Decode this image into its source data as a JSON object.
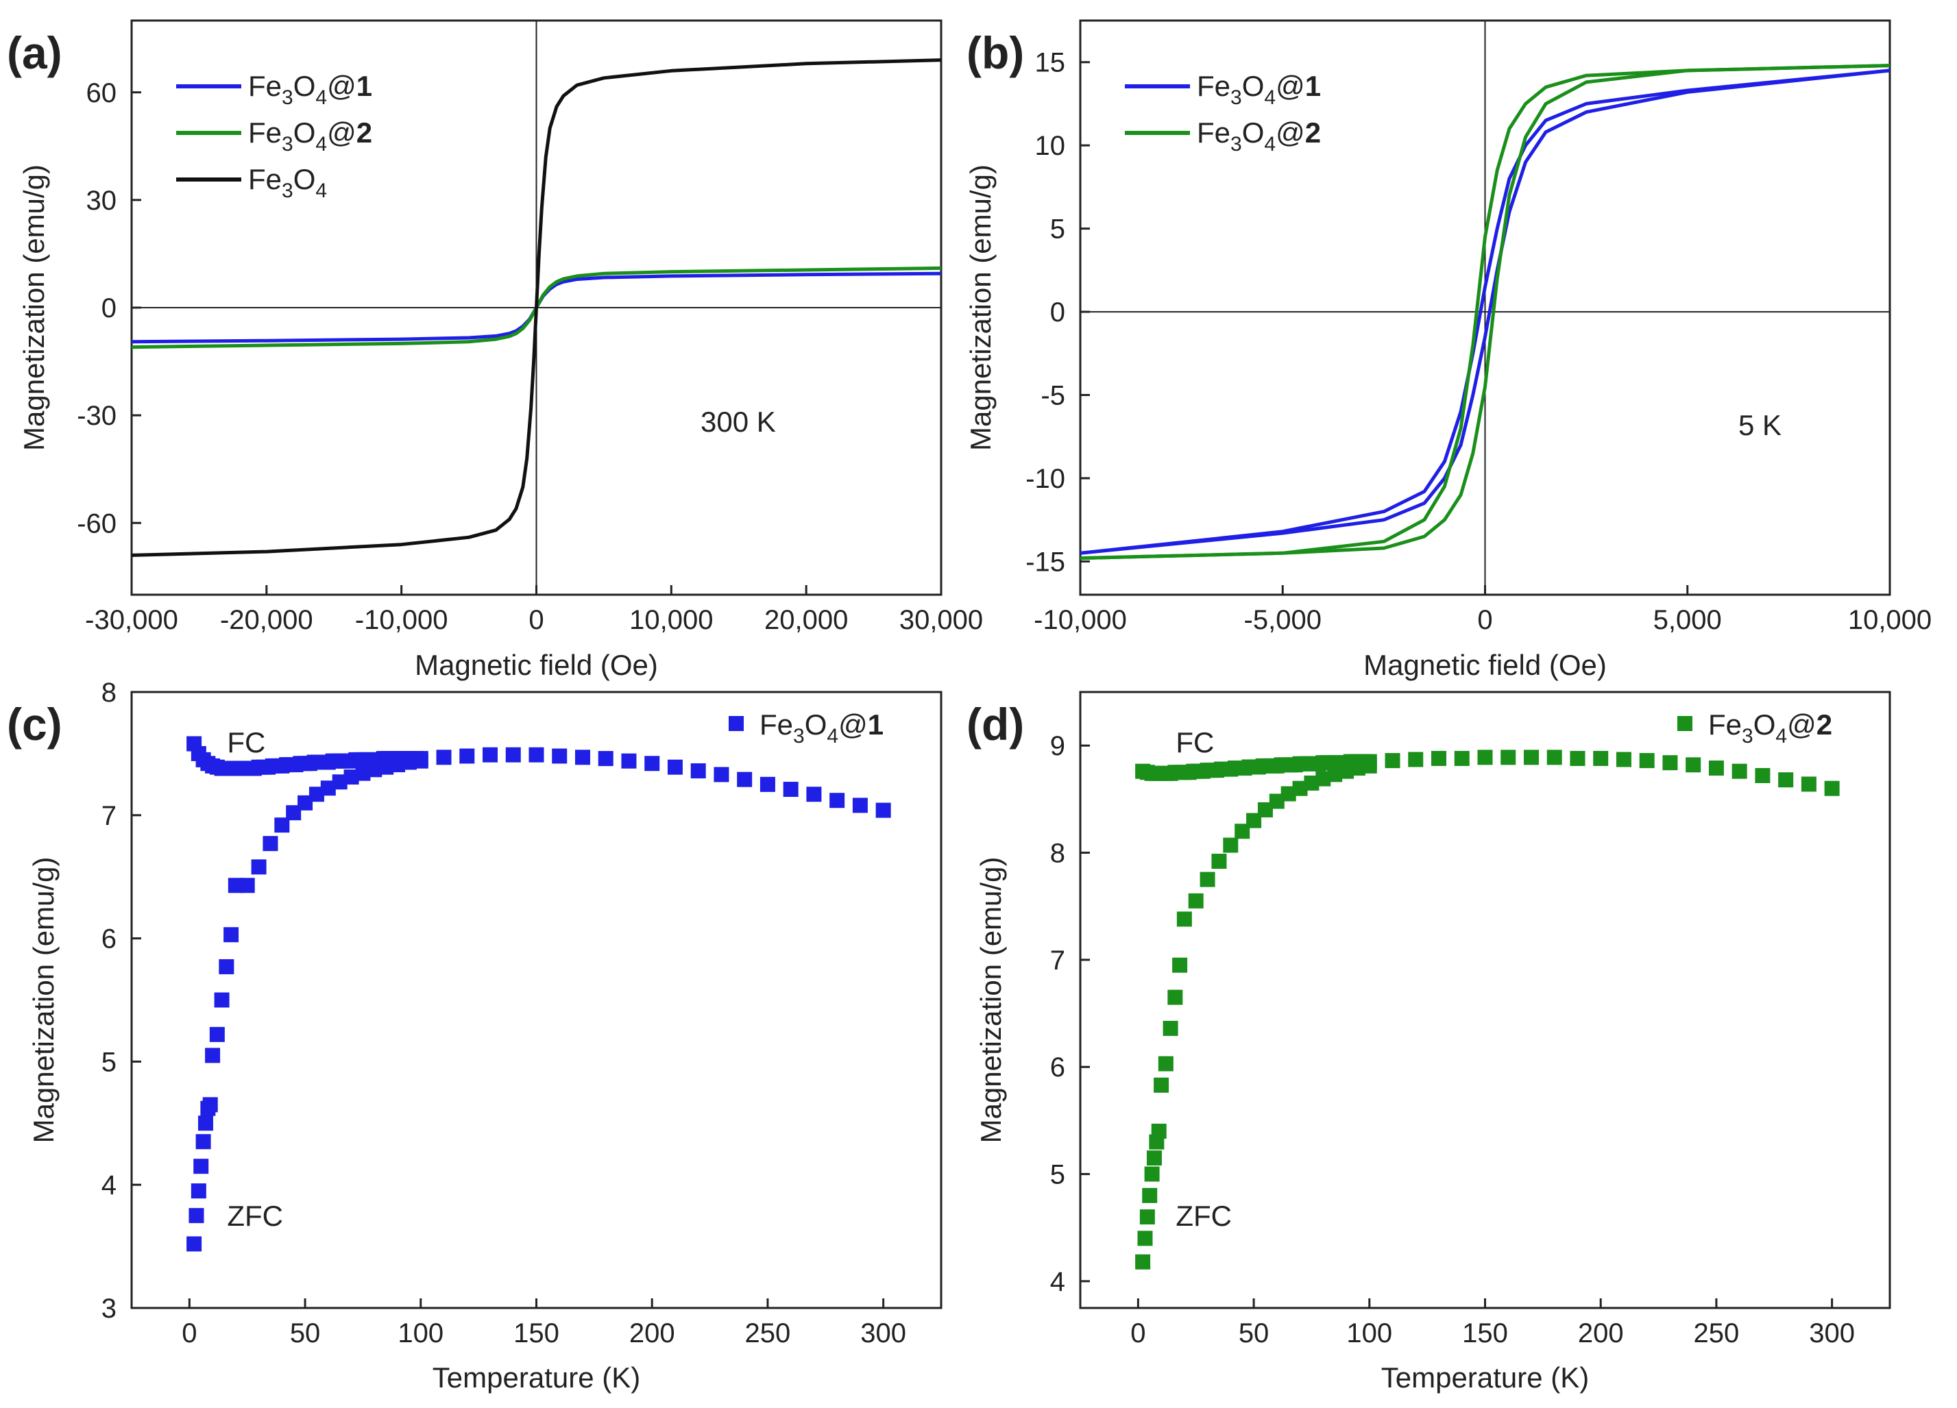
{
  "chart_data": [
    {
      "id": "a",
      "panel_label": "(a)",
      "type": "line",
      "xlabel": "Magnetic field (Oe)",
      "ylabel": "Magnetization (emu/g)",
      "xlim": [
        -30000,
        30000
      ],
      "ylim": [
        -80,
        80
      ],
      "xticks": [
        -30000,
        -20000,
        -10000,
        0,
        10000,
        20000,
        30000
      ],
      "xtick_labels": [
        "-30,000",
        "-20,000",
        "-10,000",
        "0",
        "10,000",
        "20,000",
        "30,000"
      ],
      "yticks": [
        -60,
        -30,
        0,
        30,
        60
      ],
      "ytick_labels": [
        "-60",
        "-30",
        "0",
        "30",
        "60"
      ],
      "annotation": "300 K",
      "legend_position": "top-left",
      "series": [
        {
          "name": "Fe3O4@1",
          "label_parts": [
            "Fe",
            "3",
            "O",
            "4",
            "@",
            "1"
          ],
          "color": "#1f1fe6",
          "x": [
            -30000,
            -20000,
            -10000,
            -5000,
            -3000,
            -2000,
            -1500,
            -1000,
            -500,
            0,
            500,
            1000,
            1500,
            2000,
            3000,
            5000,
            10000,
            20000,
            30000
          ],
          "y": [
            -9.5,
            -9.2,
            -8.8,
            -8.4,
            -7.9,
            -7.2,
            -6.5,
            -5.2,
            -3.2,
            0,
            3.2,
            5.2,
            6.5,
            7.2,
            7.9,
            8.4,
            8.8,
            9.2,
            9.5
          ]
        },
        {
          "name": "Fe3O4@2",
          "label_parts": [
            "Fe",
            "3",
            "O",
            "4",
            "@",
            "2"
          ],
          "color": "#1a8f1a",
          "x": [
            -30000,
            -20000,
            -10000,
            -5000,
            -3000,
            -2000,
            -1500,
            -1000,
            -500,
            0,
            500,
            1000,
            1500,
            2000,
            3000,
            5000,
            10000,
            20000,
            30000
          ],
          "y": [
            -11,
            -10.5,
            -10,
            -9.5,
            -8.8,
            -8,
            -7.2,
            -5.8,
            -3.5,
            0,
            3.5,
            5.8,
            7.2,
            8,
            8.8,
            9.5,
            10,
            10.5,
            11
          ]
        },
        {
          "name": "Fe3O4",
          "label_parts": [
            "Fe",
            "3",
            "O",
            "4",
            "",
            ""
          ],
          "color": "#111111",
          "x": [
            -30000,
            -20000,
            -10000,
            -5000,
            -3000,
            -2000,
            -1500,
            -1000,
            -700,
            -400,
            -200,
            0,
            200,
            400,
            700,
            1000,
            1500,
            2000,
            3000,
            5000,
            10000,
            20000,
            30000
          ],
          "y": [
            -69,
            -68,
            -66,
            -64,
            -62,
            -59,
            -56,
            -50,
            -42,
            -28,
            -15,
            0,
            15,
            28,
            42,
            50,
            56,
            59,
            62,
            64,
            66,
            68,
            69
          ]
        }
      ]
    },
    {
      "id": "b",
      "panel_label": "(b)",
      "type": "line",
      "xlabel": "Magnetic field (Oe)",
      "ylabel": "Magnetization (emu/g)",
      "xlim": [
        -10000,
        10000
      ],
      "ylim": [
        -17,
        17.5
      ],
      "xticks": [
        -10000,
        -5000,
        0,
        5000,
        10000
      ],
      "xtick_labels": [
        "-10,000",
        "-5,000",
        "0",
        "5,000",
        "10,000"
      ],
      "yticks": [
        -15,
        -10,
        -5,
        0,
        5,
        10,
        15
      ],
      "ytick_labels": [
        "-15",
        "-10",
        "-5",
        "0",
        "5",
        "10",
        "15"
      ],
      "annotation": "5 K",
      "legend_position": "top-left",
      "series": [
        {
          "name": "Fe3O4@1",
          "label_parts": [
            "Fe",
            "3",
            "O",
            "4",
            "@",
            "1"
          ],
          "color": "#1f1fe6",
          "upper_x": [
            -10000,
            -5000,
            -2500,
            -1500,
            -1000,
            -600,
            -300,
            0,
            300,
            600,
            1000,
            1500,
            2500,
            5000,
            10000
          ],
          "upper_y": [
            -14.5,
            -13.2,
            -12,
            -10.8,
            -9,
            -6,
            -2.5,
            1.5,
            5,
            8,
            10,
            11.5,
            12.5,
            13.3,
            14.5
          ],
          "lower_x": [
            -10000,
            -5000,
            -2500,
            -1500,
            -1000,
            -600,
            -300,
            0,
            300,
            600,
            1000,
            1500,
            2500,
            5000,
            10000
          ],
          "lower_y": [
            -14.5,
            -13.3,
            -12.5,
            -11.5,
            -10,
            -8,
            -5,
            -1.5,
            2.5,
            6,
            9,
            10.8,
            12,
            13.2,
            14.5
          ]
        },
        {
          "name": "Fe3O4@2",
          "label_parts": [
            "Fe",
            "3",
            "O",
            "4",
            "@",
            "2"
          ],
          "color": "#1a8f1a",
          "upper_x": [
            -10000,
            -5000,
            -2500,
            -1500,
            -1000,
            -600,
            -300,
            0,
            300,
            600,
            1000,
            1500,
            2500,
            5000,
            10000
          ],
          "upper_y": [
            -14.8,
            -14.5,
            -13.8,
            -12.5,
            -10.5,
            -7,
            -2,
            4.5,
            8.5,
            11,
            12.5,
            13.5,
            14.2,
            14.5,
            14.8
          ],
          "lower_x": [
            -10000,
            -5000,
            -2500,
            -1500,
            -1000,
            -600,
            -300,
            0,
            300,
            600,
            1000,
            1500,
            2500,
            5000,
            10000
          ],
          "lower_y": [
            -14.8,
            -14.5,
            -14.2,
            -13.5,
            -12.5,
            -11,
            -8.5,
            -4.5,
            2,
            7,
            10.5,
            12.5,
            13.8,
            14.5,
            14.8
          ]
        }
      ]
    },
    {
      "id": "c",
      "panel_label": "(c)",
      "type": "scatter",
      "xlabel": "Temperature (K)",
      "ylabel": "Magnetization (emu/g)",
      "xlim": [
        -25,
        325
      ],
      "ylim": [
        3,
        8
      ],
      "xticks": [
        0,
        50,
        100,
        150,
        200,
        250,
        300
      ],
      "xtick_labels": [
        "0",
        "50",
        "100",
        "150",
        "200",
        "250",
        "300"
      ],
      "yticks": [
        3,
        4,
        5,
        6,
        7,
        8
      ],
      "ytick_labels": [
        "3",
        "4",
        "5",
        "6",
        "7",
        "8"
      ],
      "annotations": {
        "fc": "FC",
        "zfc": "ZFC"
      },
      "legend_position": "top-right",
      "series": [
        {
          "name": "Fe3O4@1",
          "label_parts": [
            "Fe",
            "3",
            "O",
            "4",
            "@",
            "1"
          ],
          "color": "#1f1fe6",
          "marker": "square",
          "fc_x": [
            2,
            4,
            6,
            8,
            10,
            12,
            14,
            16,
            18,
            20,
            22,
            24,
            26,
            28,
            30,
            32,
            34,
            36,
            38,
            40,
            42,
            44,
            46,
            48,
            50,
            52,
            54,
            56,
            58,
            60,
            62,
            64,
            66,
            68,
            70,
            72,
            74,
            76,
            78,
            80,
            82,
            84,
            86,
            88,
            90,
            92,
            94,
            96,
            98,
            100
          ],
          "fc_y": [
            7.58,
            7.5,
            7.45,
            7.42,
            7.4,
            7.39,
            7.38,
            7.38,
            7.38,
            7.38,
            7.38,
            7.38,
            7.38,
            7.38,
            7.39,
            7.39,
            7.39,
            7.4,
            7.4,
            7.4,
            7.41,
            7.41,
            7.41,
            7.42,
            7.42,
            7.42,
            7.43,
            7.43,
            7.43,
            7.43,
            7.44,
            7.44,
            7.44,
            7.44,
            7.44,
            7.45,
            7.45,
            7.45,
            7.45,
            7.45,
            7.45,
            7.46,
            7.46,
            7.46,
            7.46,
            7.46,
            7.46,
            7.46,
            7.46,
            7.46
          ],
          "zfc_x": [
            2,
            3,
            4,
            5,
            6,
            7,
            8,
            9,
            10,
            12,
            14,
            16,
            18,
            20,
            25,
            30,
            35,
            40,
            45,
            50,
            55,
            60,
            65,
            70,
            75,
            80,
            85,
            90,
            95,
            100
          ],
          "zfc_y": [
            3.52,
            3.75,
            3.95,
            4.15,
            4.35,
            4.5,
            4.62,
            4.65,
            5.05,
            5.22,
            5.5,
            5.77,
            6.03,
            6.43,
            6.43,
            6.58,
            6.77,
            6.92,
            7.02,
            7.1,
            7.17,
            7.22,
            7.27,
            7.31,
            7.34,
            7.37,
            7.39,
            7.41,
            7.43,
            7.44
          ],
          "hi_x": [
            110,
            120,
            130,
            140,
            150,
            160,
            170,
            180,
            190,
            200,
            210,
            220,
            230,
            240,
            250,
            260,
            270,
            280,
            290,
            300
          ],
          "hi_y": [
            7.47,
            7.48,
            7.49,
            7.49,
            7.49,
            7.48,
            7.47,
            7.46,
            7.44,
            7.42,
            7.39,
            7.36,
            7.33,
            7.29,
            7.25,
            7.21,
            7.17,
            7.12,
            7.08,
            7.04
          ]
        }
      ]
    },
    {
      "id": "d",
      "panel_label": "(d)",
      "type": "scatter",
      "xlabel": "Temperature (K)",
      "ylabel": "Magnetization (emu/g)",
      "xlim": [
        -25,
        325
      ],
      "ylim": [
        3.75,
        9.5
      ],
      "xticks": [
        0,
        50,
        100,
        150,
        200,
        250,
        300
      ],
      "xtick_labels": [
        "0",
        "50",
        "100",
        "150",
        "200",
        "250",
        "300"
      ],
      "yticks": [
        4,
        5,
        6,
        7,
        8,
        9
      ],
      "ytick_labels": [
        "4",
        "5",
        "6",
        "7",
        "8",
        "9"
      ],
      "annotations": {
        "fc": "FC",
        "zfc": "ZFC"
      },
      "legend_position": "top-right",
      "series": [
        {
          "name": "Fe3O4@2",
          "label_parts": [
            "Fe",
            "3",
            "O",
            "4",
            "@",
            "2"
          ],
          "color": "#1a8f1a",
          "marker": "square",
          "fc_x": [
            2,
            4,
            6,
            8,
            10,
            12,
            14,
            16,
            18,
            20,
            22,
            24,
            26,
            28,
            30,
            32,
            34,
            36,
            38,
            40,
            42,
            44,
            46,
            48,
            50,
            52,
            54,
            56,
            58,
            60,
            62,
            64,
            66,
            68,
            70,
            72,
            74,
            76,
            78,
            80,
            82,
            84,
            86,
            88,
            90,
            92,
            94,
            96,
            98,
            100
          ],
          "fc_y": [
            8.76,
            8.75,
            8.74,
            8.74,
            8.74,
            8.74,
            8.74,
            8.75,
            8.75,
            8.75,
            8.75,
            8.76,
            8.76,
            8.76,
            8.77,
            8.77,
            8.77,
            8.78,
            8.78,
            8.78,
            8.79,
            8.79,
            8.79,
            8.8,
            8.8,
            8.8,
            8.81,
            8.81,
            8.81,
            8.81,
            8.82,
            8.82,
            8.82,
            8.82,
            8.83,
            8.83,
            8.83,
            8.83,
            8.83,
            8.84,
            8.84,
            8.84,
            8.84,
            8.84,
            8.84,
            8.85,
            8.85,
            8.85,
            8.85,
            8.85
          ],
          "zfc_x": [
            2,
            3,
            4,
            5,
            6,
            7,
            8,
            9,
            10,
            12,
            14,
            16,
            18,
            20,
            25,
            30,
            35,
            40,
            45,
            50,
            55,
            60,
            65,
            70,
            75,
            80,
            85,
            90,
            95,
            100
          ],
          "zfc_y": [
            4.18,
            4.4,
            4.6,
            4.8,
            5,
            5.15,
            5.3,
            5.4,
            5.83,
            6.03,
            6.36,
            6.65,
            6.95,
            7.38,
            7.55,
            7.75,
            7.92,
            8.07,
            8.2,
            8.3,
            8.4,
            8.48,
            8.55,
            8.6,
            8.65,
            8.69,
            8.73,
            8.76,
            8.79,
            8.81
          ],
          "hi_x": [
            110,
            120,
            130,
            140,
            150,
            160,
            170,
            180,
            190,
            200,
            210,
            220,
            230,
            240,
            250,
            260,
            270,
            280,
            290,
            300
          ],
          "hi_y": [
            8.86,
            8.87,
            8.88,
            8.88,
            8.89,
            8.89,
            8.89,
            8.89,
            8.88,
            8.88,
            8.87,
            8.86,
            8.84,
            8.82,
            8.79,
            8.76,
            8.72,
            8.68,
            8.64,
            8.6
          ]
        }
      ]
    }
  ]
}
